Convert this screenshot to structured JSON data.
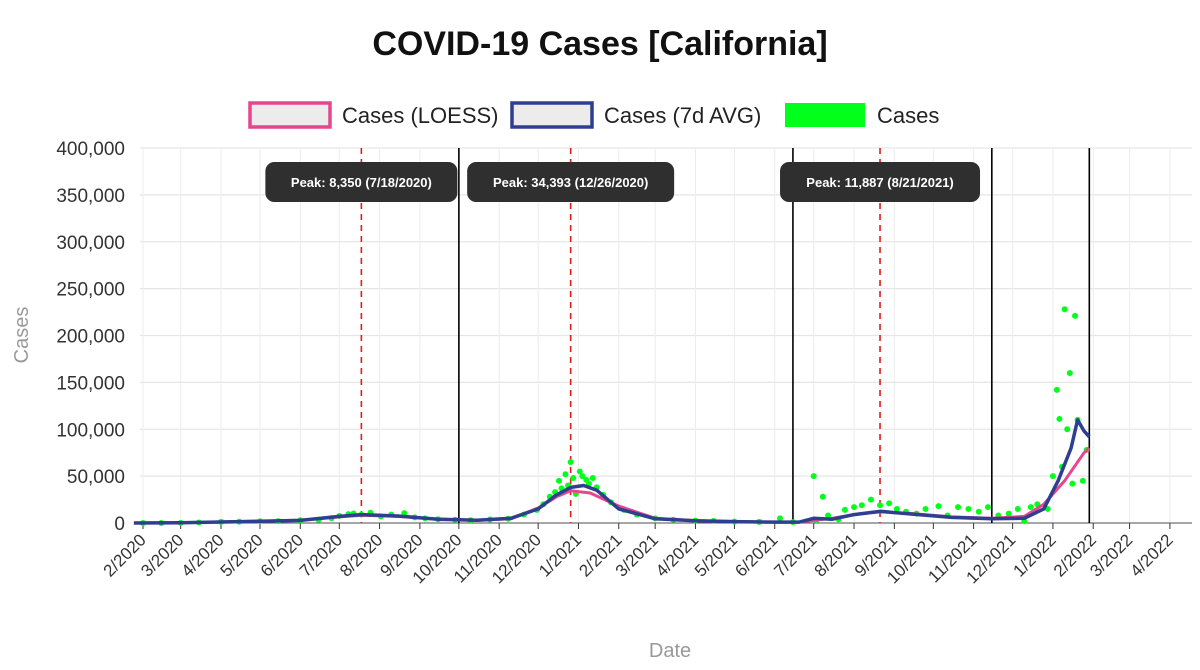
{
  "chart_data": {
    "type": "line",
    "title": "COVID-19 Cases [California]",
    "xlabel": "Date",
    "ylabel": "Cases",
    "ylim": [
      0,
      400000
    ],
    "yticks": [
      0,
      50000,
      100000,
      150000,
      200000,
      250000,
      300000,
      350000,
      400000
    ],
    "ytick_labels": [
      "0",
      "50,000",
      "100,000",
      "150,000",
      "200,000",
      "250,000",
      "300,000",
      "350,000",
      "400,000"
    ],
    "xlim": [
      "2020-01-22",
      "2022-04-18"
    ],
    "xticks": [
      "2020-02-01",
      "2020-03-01",
      "2020-04-01",
      "2020-05-01",
      "2020-06-01",
      "2020-07-01",
      "2020-08-01",
      "2020-09-01",
      "2020-10-01",
      "2020-11-01",
      "2020-12-01",
      "2021-01-01",
      "2021-02-01",
      "2021-03-01",
      "2021-04-01",
      "2021-05-01",
      "2021-06-01",
      "2021-07-01",
      "2021-08-01",
      "2021-09-01",
      "2021-10-01",
      "2021-11-01",
      "2021-12-01",
      "2022-01-01",
      "2022-02-01",
      "2022-03-01",
      "2022-04-01"
    ],
    "xtick_labels": [
      "2/2020",
      "3/2020",
      "4/2020",
      "5/2020",
      "6/2020",
      "7/2020",
      "8/2020",
      "9/2020",
      "10/2020",
      "11/2020",
      "12/2020",
      "1/2021",
      "2/2021",
      "3/2021",
      "4/2021",
      "5/2021",
      "6/2021",
      "7/2021",
      "8/2021",
      "9/2021",
      "10/2021",
      "11/2021",
      "12/2021",
      "1/2022",
      "2/2022",
      "3/2022",
      "4/2022"
    ],
    "grid": "horizontal",
    "legend_position": "top",
    "series": [
      {
        "name": "Cases (LOESS)",
        "type": "line",
        "color": "#e8458f",
        "points": [
          [
            "2020-01-25",
            0
          ],
          [
            "2020-03-01",
            300
          ],
          [
            "2020-04-01",
            1200
          ],
          [
            "2020-05-01",
            1900
          ],
          [
            "2020-06-01",
            2900
          ],
          [
            "2020-07-01",
            6500
          ],
          [
            "2020-07-18",
            8350
          ],
          [
            "2020-08-15",
            7000
          ],
          [
            "2020-09-15",
            4200
          ],
          [
            "2020-10-15",
            3000
          ],
          [
            "2020-11-10",
            4500
          ],
          [
            "2020-12-01",
            16000
          ],
          [
            "2020-12-15",
            28000
          ],
          [
            "2020-12-26",
            34393
          ],
          [
            "2021-01-10",
            32000
          ],
          [
            "2021-02-01",
            18000
          ],
          [
            "2021-03-01",
            5000
          ],
          [
            "2021-04-01",
            2500
          ],
          [
            "2021-05-01",
            1500
          ],
          [
            "2021-06-01",
            1000
          ],
          [
            "2021-06-20",
            1100
          ],
          [
            "2021-07-15",
            5000
          ],
          [
            "2021-08-01",
            9000
          ],
          [
            "2021-08-21",
            11887
          ],
          [
            "2021-09-15",
            10000
          ],
          [
            "2021-10-15",
            6500
          ],
          [
            "2021-11-15",
            5000
          ],
          [
            "2021-12-10",
            7000
          ],
          [
            "2021-12-25",
            20000
          ],
          [
            "2022-01-10",
            45000
          ],
          [
            "2022-01-25",
            75000
          ],
          [
            "2022-01-29",
            80000
          ]
        ]
      },
      {
        "name": "Cases (7d AVG)",
        "type": "line",
        "color": "#2e3f8f",
        "points": [
          [
            "2020-01-25",
            0
          ],
          [
            "2020-03-01",
            200
          ],
          [
            "2020-04-01",
            1100
          ],
          [
            "2020-05-01",
            1800
          ],
          [
            "2020-06-01",
            2800
          ],
          [
            "2020-07-01",
            7000
          ],
          [
            "2020-07-18",
            9000
          ],
          [
            "2020-08-15",
            7500
          ],
          [
            "2020-09-15",
            4000
          ],
          [
            "2020-10-15",
            3000
          ],
          [
            "2020-11-10",
            5000
          ],
          [
            "2020-12-01",
            15000
          ],
          [
            "2020-12-15",
            30000
          ],
          [
            "2020-12-26",
            38000
          ],
          [
            "2021-01-05",
            40000
          ],
          [
            "2021-01-15",
            35000
          ],
          [
            "2021-02-01",
            15000
          ],
          [
            "2021-03-01",
            4500
          ],
          [
            "2021-04-01",
            2500
          ],
          [
            "2021-05-01",
            1500
          ],
          [
            "2021-06-01",
            1000
          ],
          [
            "2021-06-20",
            1000
          ],
          [
            "2021-07-01",
            5000
          ],
          [
            "2021-07-15",
            4000
          ],
          [
            "2021-08-01",
            9000
          ],
          [
            "2021-08-21",
            12500
          ],
          [
            "2021-09-15",
            9500
          ],
          [
            "2021-10-15",
            6000
          ],
          [
            "2021-11-15",
            4500
          ],
          [
            "2021-12-10",
            5000
          ],
          [
            "2021-12-25",
            15000
          ],
          [
            "2022-01-05",
            45000
          ],
          [
            "2022-01-15",
            80000
          ],
          [
            "2022-01-20",
            110000
          ],
          [
            "2022-01-25",
            98000
          ],
          [
            "2022-01-29",
            92000
          ]
        ]
      },
      {
        "name": "Cases",
        "type": "scatter",
        "color": "#00ff1a",
        "points": [
          [
            "2020-02-01",
            0
          ],
          [
            "2020-02-15",
            50
          ],
          [
            "2020-03-01",
            200
          ],
          [
            "2020-03-15",
            600
          ],
          [
            "2020-04-01",
            1200
          ],
          [
            "2020-04-15",
            1400
          ],
          [
            "2020-05-01",
            1800
          ],
          [
            "2020-05-15",
            2000
          ],
          [
            "2020-06-01",
            2900
          ],
          [
            "2020-06-15",
            3500
          ],
          [
            "2020-06-25",
            5200
          ],
          [
            "2020-07-01",
            7500
          ],
          [
            "2020-07-08",
            9500
          ],
          [
            "2020-07-12",
            10200
          ],
          [
            "2020-07-18",
            9000
          ],
          [
            "2020-07-25",
            11000
          ],
          [
            "2020-08-02",
            7000
          ],
          [
            "2020-08-10",
            9000
          ],
          [
            "2020-08-20",
            10500
          ],
          [
            "2020-08-28",
            6000
          ],
          [
            "2020-09-05",
            5000
          ],
          [
            "2020-09-15",
            4000
          ],
          [
            "2020-09-28",
            3500
          ],
          [
            "2020-10-10",
            3000
          ],
          [
            "2020-10-25",
            3800
          ],
          [
            "2020-11-08",
            4500
          ],
          [
            "2020-11-20",
            9000
          ],
          [
            "2020-11-30",
            14000
          ],
          [
            "2020-12-05",
            20000
          ],
          [
            "2020-12-10",
            28000
          ],
          [
            "2020-12-14",
            33000
          ],
          [
            "2020-12-17",
            45000
          ],
          [
            "2020-12-19",
            37000
          ],
          [
            "2020-12-22",
            52000
          ],
          [
            "2020-12-24",
            40000
          ],
          [
            "2020-12-26",
            65000
          ],
          [
            "2020-12-28",
            48000
          ],
          [
            "2020-12-30",
            31000
          ],
          [
            "2021-01-02",
            55000
          ],
          [
            "2021-01-04",
            50000
          ],
          [
            "2021-01-07",
            46000
          ],
          [
            "2021-01-09",
            42000
          ],
          [
            "2021-01-12",
            48000
          ],
          [
            "2021-01-15",
            38000
          ],
          [
            "2021-01-20",
            30000
          ],
          [
            "2021-01-26",
            22000
          ],
          [
            "2021-02-05",
            14000
          ],
          [
            "2021-02-15",
            9000
          ],
          [
            "2021-03-01",
            5000
          ],
          [
            "2021-03-15",
            3500
          ],
          [
            "2021-04-01",
            2500
          ],
          [
            "2021-04-15",
            2200
          ],
          [
            "2021-05-01",
            1500
          ],
          [
            "2021-05-20",
            1200
          ],
          [
            "2021-06-05",
            5000
          ],
          [
            "2021-06-15",
            1000
          ],
          [
            "2021-07-01",
            50000
          ],
          [
            "2021-07-03",
            3000
          ],
          [
            "2021-07-08",
            28000
          ],
          [
            "2021-07-12",
            8000
          ],
          [
            "2021-07-20",
            4000
          ],
          [
            "2021-07-25",
            14000
          ],
          [
            "2021-08-01",
            17000
          ],
          [
            "2021-08-07",
            19000
          ],
          [
            "2021-08-14",
            25000
          ],
          [
            "2021-08-21",
            19000
          ],
          [
            "2021-08-28",
            21000
          ],
          [
            "2021-09-03",
            15000
          ],
          [
            "2021-09-10",
            12000
          ],
          [
            "2021-09-18",
            10000
          ],
          [
            "2021-09-25",
            15000
          ],
          [
            "2021-10-05",
            18000
          ],
          [
            "2021-10-12",
            8000
          ],
          [
            "2021-10-20",
            17000
          ],
          [
            "2021-10-28",
            15000
          ],
          [
            "2021-11-05",
            12000
          ],
          [
            "2021-11-12",
            17000
          ],
          [
            "2021-11-20",
            8000
          ],
          [
            "2021-11-28",
            10000
          ],
          [
            "2021-12-05",
            15000
          ],
          [
            "2021-12-10",
            2000
          ],
          [
            "2021-12-15",
            17000
          ],
          [
            "2021-12-20",
            20000
          ],
          [
            "2021-12-28",
            15000
          ],
          [
            "2022-01-01",
            50000
          ],
          [
            "2022-01-04",
            142000
          ],
          [
            "2022-01-06",
            111000
          ],
          [
            "2022-01-08",
            60000
          ],
          [
            "2022-01-10",
            228000
          ],
          [
            "2022-01-12",
            100000
          ],
          [
            "2022-01-14",
            160000
          ],
          [
            "2022-01-16",
            42000
          ],
          [
            "2022-01-18",
            221000
          ],
          [
            "2022-01-20",
            110000
          ],
          [
            "2022-01-24",
            45000
          ],
          [
            "2022-01-27",
            78000
          ]
        ]
      }
    ],
    "vlines_solid": [
      "2020-10-01",
      "2021-06-15",
      "2021-11-15",
      "2022-01-29"
    ],
    "vlines_dashed": [
      "2020-07-18",
      "2020-12-26",
      "2021-08-21"
    ],
    "annotations": [
      {
        "text": "Peak: 8,350 (7/18/2020)",
        "date": "2020-07-18"
      },
      {
        "text": "Peak: 34,393 (12/26/2020)",
        "date": "2020-12-26"
      },
      {
        "text": "Peak: 11,887 (8/21/2021)",
        "date": "2021-08-21"
      }
    ]
  }
}
